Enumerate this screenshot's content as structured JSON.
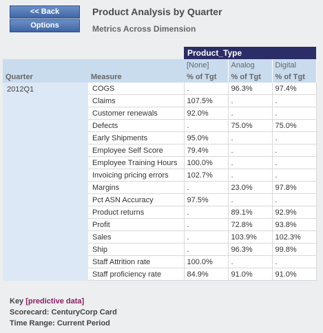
{
  "buttons": {
    "back": "<< Back",
    "options": "Options"
  },
  "header": {
    "title": "Product Analysis by Quarter",
    "subtitle": "Metrics Across Dimension"
  },
  "table": {
    "group_header": "Product_Type",
    "product_types": [
      "[None]",
      "Analog",
      "Digital"
    ],
    "quarter_header": "Quarter",
    "measure_header": "Measure",
    "value_header": "% of Tgt",
    "quarter": "2012Q1",
    "rows": [
      {
        "measure": "COGS",
        "values": [
          ".",
          "96.3%",
          "97.4%"
        ]
      },
      {
        "measure": "Claims",
        "values": [
          "107.5%",
          ".",
          "."
        ]
      },
      {
        "measure": "Customer renewals",
        "values": [
          "92.0%",
          ".",
          "."
        ]
      },
      {
        "measure": "Defects",
        "values": [
          ".",
          "75.0%",
          "75.0%"
        ]
      },
      {
        "measure": "Early Shipments",
        "values": [
          "95.0%",
          ".",
          "."
        ]
      },
      {
        "measure": "Employee Self Score",
        "values": [
          "79.4%",
          ".",
          "."
        ]
      },
      {
        "measure": "Employee Training Hours",
        "values": [
          "100.0%",
          ".",
          "."
        ]
      },
      {
        "measure": "Invoicing pricing errors",
        "values": [
          "102.7%",
          ".",
          "."
        ]
      },
      {
        "measure": "Margins",
        "values": [
          ".",
          "23.0%",
          "97.8%"
        ]
      },
      {
        "measure": "Pct ASN Accuracy",
        "values": [
          "97.5%",
          ".",
          "."
        ]
      },
      {
        "measure": "Product returns",
        "values": [
          ".",
          "89.1%",
          "92.9%"
        ]
      },
      {
        "measure": "Profit",
        "values": [
          ".",
          "72.8%",
          "93.8%"
        ]
      },
      {
        "measure": "Sales",
        "values": [
          ".",
          "103.9%",
          "102.3%"
        ]
      },
      {
        "measure": "Ship",
        "values": [
          ".",
          "96.3%",
          "99.8%"
        ]
      },
      {
        "measure": "Staff Attrition rate",
        "values": [
          "100.0%",
          ".",
          "."
        ]
      },
      {
        "measure": "Staff proficiency rate",
        "values": [
          "84.9%",
          "91.0%",
          "91.0%"
        ]
      }
    ]
  },
  "footer": {
    "key_label": "Key",
    "key_value": "[predictive data]",
    "scorecard": "Scorecard: CenturyCorp Card",
    "time_range": "Time Range: Current Period"
  },
  "colors": {
    "button_blue": "#4A70B0",
    "header_navy": "#2B2D66",
    "header_light_blue": "#C9DCEE",
    "predictive_purple": "#8A2064"
  }
}
